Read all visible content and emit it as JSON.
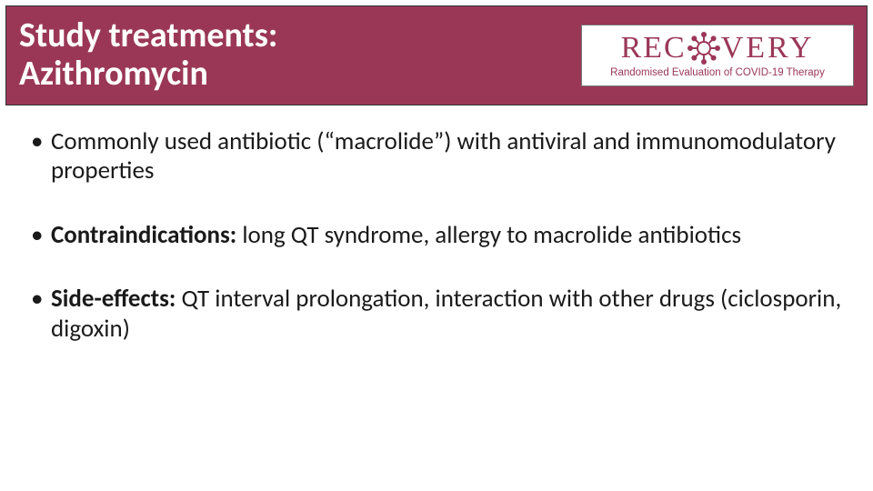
{
  "colors": {
    "brand": "#9a3757",
    "title_bg": "#9a3757",
    "title_text": "#ffffff",
    "body_text": "#1a1a1a",
    "slide_bg": "#ffffff",
    "title_border": "#333333",
    "logo_border": "#777777"
  },
  "typography": {
    "title_fontsize_pt": 30,
    "title_weight": 700,
    "body_fontsize_pt": 21,
    "logo_main_fontsize_pt": 26,
    "logo_sub_fontsize_pt": 9
  },
  "title": {
    "line1": "Study treatments:",
    "line2": "Azithromycin"
  },
  "logo": {
    "main_left": "REC",
    "main_right": "VERY",
    "subtitle": "Randomised Evaluation of COVID-19 Therapy",
    "icon_name": "virus-icon"
  },
  "bullets": [
    {
      "label": "",
      "text": "Commonly used antibiotic (“macrolide”) with antiviral and immunomodulatory properties"
    },
    {
      "label": "Contraindications:",
      "text": "  long QT syndrome, allergy to macrolide antibiotics"
    },
    {
      "label": "Side-effects:",
      "text": "  QT interval prolongation, interaction with other drugs (ciclosporin, digoxin)"
    }
  ]
}
